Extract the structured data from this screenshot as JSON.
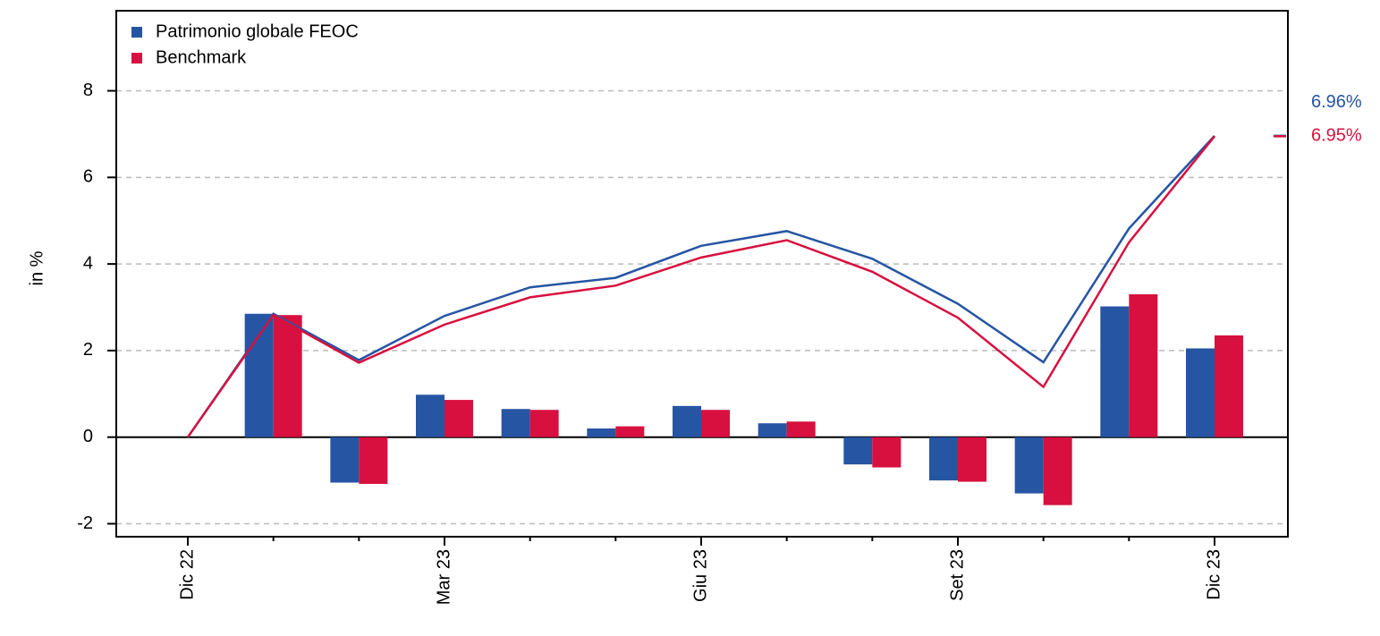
{
  "chart_data": {
    "type": "combo",
    "y_label": "in %",
    "categories": [
      "Dic 22",
      null,
      null,
      "Mar 23",
      null,
      null,
      "Giu 23",
      null,
      null,
      "Set 23",
      null,
      null,
      "Dic 23"
    ],
    "ylim": [
      -2.3,
      9.85
    ],
    "yticks": [
      -2,
      0,
      2,
      4,
      6,
      8
    ],
    "grid": true,
    "legend": "top-left",
    "series": [
      {
        "name": "Patrimonio globale FEOC",
        "type": "bar",
        "color": "#2655a3",
        "values": [
          null,
          2.85,
          -1.05,
          0.98,
          0.65,
          0.2,
          0.72,
          0.32,
          -0.63,
          -1.0,
          -1.3,
          3.02,
          2.05
        ]
      },
      {
        "name": "Benchmark",
        "type": "bar",
        "color": "#d8103f",
        "values": [
          null,
          2.82,
          -1.08,
          0.86,
          0.63,
          0.25,
          0.63,
          0.36,
          -0.7,
          -1.03,
          -1.57,
          3.3,
          2.35
        ]
      },
      {
        "type": "line",
        "color": "#2655a3",
        "values": [
          0,
          2.85,
          1.78,
          2.8,
          3.46,
          3.68,
          4.42,
          4.76,
          4.12,
          3.08,
          1.73,
          4.82,
          6.96
        ],
        "value_labels": [
          null,
          null,
          null,
          null,
          null,
          null,
          null,
          null,
          null,
          null,
          null,
          null,
          "6.96%"
        ]
      },
      {
        "type": "line",
        "color": "#d8103f",
        "values": [
          0,
          2.82,
          1.72,
          2.6,
          3.23,
          3.5,
          4.15,
          4.55,
          3.82,
          2.76,
          1.16,
          4.5,
          6.95
        ],
        "value_labels": [
          null,
          null,
          null,
          null,
          null,
          null,
          null,
          null,
          null,
          null,
          null,
          null,
          "6.95%"
        ]
      }
    ]
  }
}
